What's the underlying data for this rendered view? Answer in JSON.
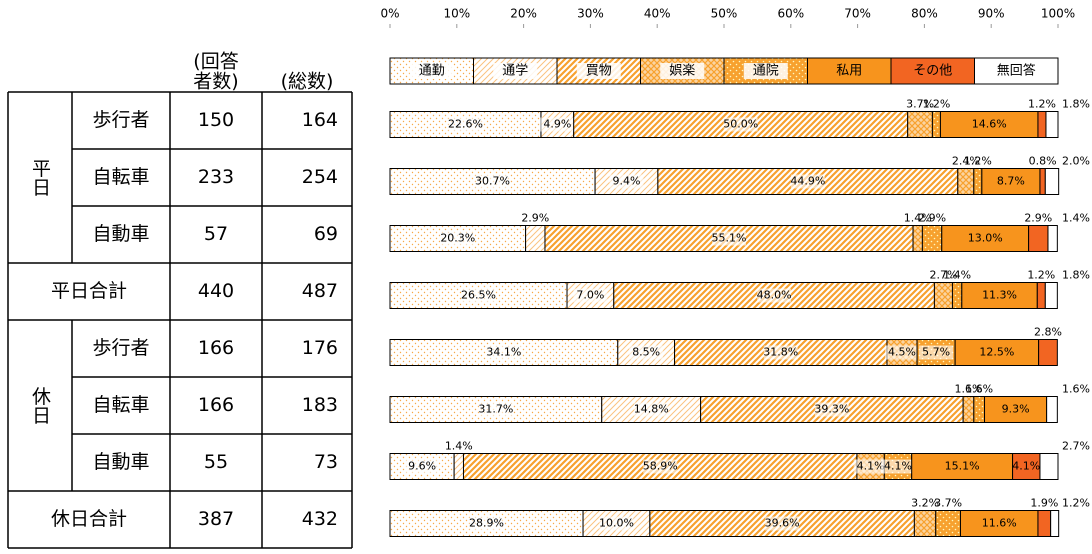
{
  "table": {
    "header": [
      [
        "(回答",
        "者数)"
      ],
      [
        "(総数)"
      ]
    ],
    "groups": [
      {
        "label": "平日",
        "rows": [
          0,
          1,
          2
        ]
      },
      {
        "label": "休日",
        "rows": [
          4,
          5,
          6
        ]
      }
    ],
    "rows": [
      [
        "歩行者",
        "150",
        "164"
      ],
      [
        "自転車",
        "233",
        "254"
      ],
      [
        "自動車",
        "57",
        "69"
      ],
      [
        "平日合計",
        "440",
        "487"
      ],
      [
        "歩行者",
        "166",
        "176"
      ],
      [
        "自転車",
        "166",
        "183"
      ],
      [
        "自動車",
        "55",
        "73"
      ],
      [
        "休日合計",
        "387",
        "432"
      ]
    ]
  },
  "chart_data": {
    "type": "stacked-barh",
    "xlim": [
      0,
      100
    ],
    "xticks": [
      {
        "value": 0,
        "label": "0%"
      },
      {
        "value": 10,
        "label": "10%"
      },
      {
        "value": 20,
        "label": "20%"
      },
      {
        "value": 30,
        "label": "30%"
      },
      {
        "value": 40,
        "label": "40%"
      },
      {
        "value": 50,
        "label": "50%"
      },
      {
        "value": 60,
        "label": "60%"
      },
      {
        "value": 70,
        "label": "70%"
      },
      {
        "value": 80,
        "label": "80%"
      },
      {
        "value": 90,
        "label": "90%"
      },
      {
        "value": 100,
        "label": "100%"
      }
    ],
    "series": [
      {
        "name": "通勤",
        "color": "#f7a94a",
        "pattern": "dots",
        "values": [
          22.6,
          30.7,
          20.3,
          26.5,
          34.1,
          31.7,
          9.6,
          28.9
        ],
        "value_labels": [
          "22.6%",
          "30.7%",
          "20.3%",
          "26.5%",
          "34.1%",
          "31.7%",
          "9.6%",
          "28.9%"
        ]
      },
      {
        "name": "通学",
        "color": "#f7a94a",
        "pattern": "light-diagonal",
        "values": [
          4.9,
          9.4,
          2.9,
          7.0,
          8.5,
          14.8,
          1.4,
          10.0
        ],
        "value_labels": [
          "4.9%",
          "9.4%",
          "2.9%",
          "7.0%",
          "8.5%",
          "14.8%",
          "1.4%",
          "10.0%"
        ]
      },
      {
        "name": "買物",
        "color": "#f7a12e",
        "pattern": "diagonal",
        "values": [
          50.0,
          44.9,
          55.1,
          48.0,
          31.8,
          39.3,
          58.9,
          39.6
        ],
        "value_labels": [
          "50.0%",
          "44.9%",
          "55.1%",
          "48.0%",
          "31.8%",
          "39.3%",
          "58.9%",
          "39.6%"
        ]
      },
      {
        "name": "娯楽",
        "color": "#f7a12e",
        "pattern": "crosshatch",
        "values": [
          3.7,
          2.4,
          1.4,
          2.7,
          4.5,
          1.6,
          4.1,
          3.2
        ],
        "value_labels": [
          "3.7%",
          "2.4%",
          "1.4%",
          "2.7%",
          "4.5%",
          "1.6%",
          "4.1%",
          "3.2%"
        ]
      },
      {
        "name": "通院",
        "color": "#f7a12e",
        "pattern": "dense-dots",
        "values": [
          1.2,
          1.2,
          2.9,
          1.4,
          5.7,
          1.6,
          4.1,
          3.7
        ],
        "value_labels": [
          "1.2%",
          "1.2%",
          "2.9%",
          "1.4%",
          "5.7%",
          "1.6%",
          "4.1%",
          "3.7%"
        ]
      },
      {
        "name": "私用",
        "color": "#f7941d",
        "pattern": "solid",
        "values": [
          14.6,
          8.7,
          13.0,
          11.3,
          12.5,
          9.3,
          15.1,
          11.6
        ],
        "value_labels": [
          "14.6%",
          "8.7%",
          "13.0%",
          "11.3%",
          "12.5%",
          "9.3%",
          "15.1%",
          "11.6%"
        ]
      },
      {
        "name": "その他",
        "color": "#f26522",
        "pattern": "solid",
        "values": [
          1.2,
          0.8,
          2.9,
          1.2,
          2.8,
          0,
          4.1,
          1.9
        ],
        "value_labels": [
          "1.2%",
          "0.8%",
          "2.9%",
          "1.2%",
          "2.8%",
          null,
          "4.1%",
          "1.9%"
        ]
      },
      {
        "name": "無回答",
        "color": "#ffffff",
        "pattern": "solid",
        "values": [
          1.8,
          2.0,
          1.4,
          1.8,
          0,
          1.6,
          2.7,
          1.2
        ],
        "value_labels": [
          "1.8%",
          "2.0%",
          "1.4%",
          "1.8%",
          null,
          "1.6%",
          "2.7%",
          "1.2%"
        ]
      }
    ]
  }
}
